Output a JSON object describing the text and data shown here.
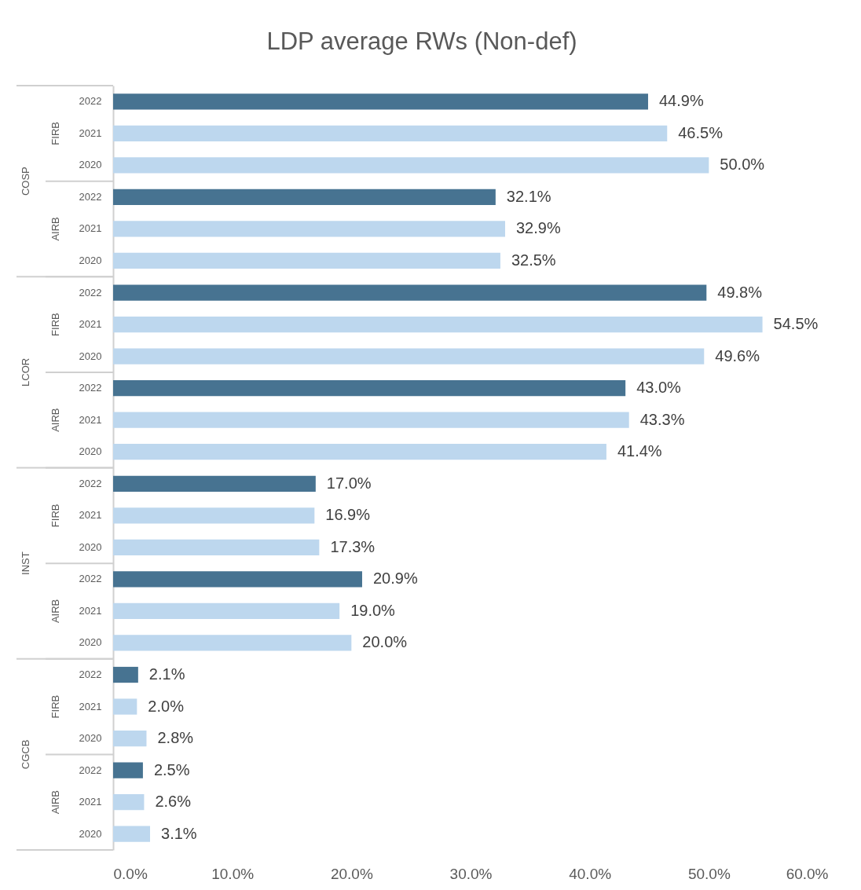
{
  "chart_data": {
    "type": "bar",
    "orientation": "horizontal",
    "title": "LDP average RWs (Non-def)",
    "categories": [
      "2022",
      "2021",
      "2020",
      "2022",
      "2021",
      "2020",
      "2022",
      "2021",
      "2020",
      "2022",
      "2021",
      "2020",
      "2022",
      "2021",
      "2020",
      "2022",
      "2021",
      "2020",
      "2022",
      "2021",
      "2020",
      "2022",
      "2021",
      "2020"
    ],
    "values": [
      44.9,
      46.5,
      50.0,
      32.1,
      32.9,
      32.5,
      49.8,
      54.5,
      49.6,
      43.0,
      43.3,
      41.4,
      17.0,
      16.9,
      17.3,
      20.9,
      19.0,
      20.0,
      2.1,
      2.0,
      2.8,
      2.5,
      2.6,
      3.1
    ],
    "colors": [
      "#477391",
      "#bdd7ee",
      "#bdd7ee",
      "#477391",
      "#bdd7ee",
      "#bdd7ee",
      "#477391",
      "#bdd7ee",
      "#bdd7ee",
      "#477391",
      "#bdd7ee",
      "#bdd7ee",
      "#477391",
      "#bdd7ee",
      "#bdd7ee",
      "#477391",
      "#bdd7ee",
      "#bdd7ee",
      "#477391",
      "#bdd7ee",
      "#bdd7ee",
      "#477391",
      "#bdd7ee",
      "#bdd7ee"
    ],
    "value_labels": [
      "44.9%",
      "46.5%",
      "50.0%",
      "32.1%",
      "32.9%",
      "32.5%",
      "49.8%",
      "54.5%",
      "49.6%",
      "43.0%",
      "43.3%",
      "41.4%",
      "17.0%",
      "16.9%",
      "17.3%",
      "20.9%",
      "19.0%",
      "20.0%",
      "2.1%",
      "2.0%",
      "2.8%",
      "2.5%",
      "2.6%",
      "3.1%"
    ],
    "xlim": [
      0,
      60
    ],
    "xticks": [
      {
        "value": 0,
        "label": "0.0%"
      },
      {
        "value": 10,
        "label": "10.0%"
      },
      {
        "value": 20,
        "label": "20.0%"
      },
      {
        "value": 30,
        "label": "30.0%"
      },
      {
        "value": 40,
        "label": "40.0%"
      },
      {
        "value": 50,
        "label": "50.0%"
      },
      {
        "value": 60,
        "label": "60.0%"
      }
    ],
    "annotations": [
      "FIRB",
      "AIRB",
      "FIRB",
      "AIRB",
      "FIRB",
      "AIRB",
      "FIRB",
      "AIRB",
      "COSP",
      "LCOR",
      "INST",
      "CGCB"
    ]
  }
}
